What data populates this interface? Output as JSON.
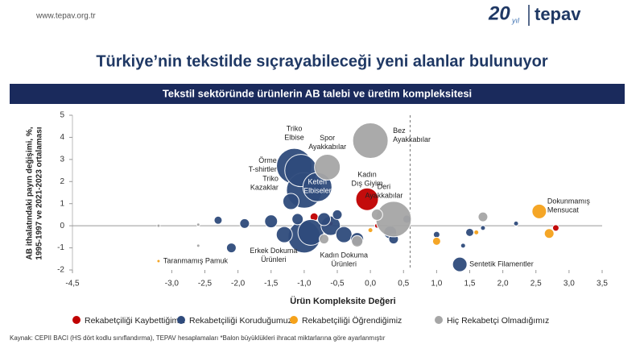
{
  "header": {
    "url": "www.tepav.org.tr",
    "logo_number": "20",
    "logo_suffix": "yıl",
    "logo_name": "tepav"
  },
  "title": "Türkiye’nin tekstilde sıçrayabileceği yeni alanlar bulunuyor",
  "footer": "Kaynak: CEPII BACI (HS dört kodlu sınıflandırma), TEPAV hesaplamaları *Balon büyüklükleri ihracat miktarlarına göre ayarlanmıştır",
  "chart_data": {
    "type": "bubble",
    "title": "Tekstil sektöründe ürünlerin AB talebi ve üretim kompleksitesi",
    "x_label": "Ürün Kompleksite Değeri",
    "y_label": [
      "AB ithalatındaki payın değişimi, %,",
      "1995-1997 ve 2021-2023 ortalaması"
    ],
    "xlim": [
      -4.5,
      3.5
    ],
    "ylim": [
      -2,
      5
    ],
    "xticks": [
      {
        "value": -4.5,
        "label": "-4,5"
      },
      {
        "value": -3.0,
        "label": "-3,0"
      },
      {
        "value": -2.5,
        "label": "-2,5"
      },
      {
        "value": -2.0,
        "label": "-2,0"
      },
      {
        "value": -1.5,
        "label": "-1,5"
      },
      {
        "value": -1.0,
        "label": "-1,0"
      },
      {
        "value": -0.5,
        "label": "-0,5"
      },
      {
        "value": 0,
        "label": "0,0"
      },
      {
        "value": 0.5,
        "label": "0,5"
      },
      {
        "value": 1.0,
        "label": "1,0"
      },
      {
        "value": 1.5,
        "label": "1,5"
      },
      {
        "value": 2.0,
        "label": "2,0"
      },
      {
        "value": 2.5,
        "label": "2,5"
      },
      {
        "value": 3.0,
        "label": "3,0"
      },
      {
        "value": 3.5,
        "label": "3,5"
      }
    ],
    "yticks": [
      -2,
      -1,
      0,
      1,
      2,
      3,
      4,
      5
    ],
    "reference_x": 0.6,
    "legend": "bottom",
    "series": [
      {
        "name": "Rekabetçiliği Kaybettiğimiz",
        "color": "#c00000",
        "x": [
          -0.05,
          -0.85,
          -0.6,
          2.8,
          0.1
        ],
        "values": [
          1.2,
          0.4,
          0.1,
          -0.1,
          0.0
        ],
        "sizes": [
          14,
          5,
          3,
          4,
          3
        ],
        "labels": [
          [
            "Kadın",
            "Dış Giyim"
          ],
          null,
          null,
          null,
          null
        ]
      },
      {
        "name": "Rekabetçiliği Koruduğumuz",
        "color": "#2f4b7c",
        "x": [
          -1.15,
          -1.05,
          -1.0,
          -0.8,
          -1.2,
          -1.5,
          -1.9,
          -2.1,
          -2.3,
          -1.0,
          -0.9,
          -0.6,
          -0.4,
          -1.3,
          -0.7,
          -0.2,
          -1.1,
          -0.5,
          0.3,
          0.55,
          0.35,
          1.35,
          1.0,
          1.5,
          1.7,
          2.2,
          1.4
        ],
        "values": [
          2.7,
          2.5,
          1.6,
          1.75,
          1.1,
          0.2,
          0.1,
          -1.0,
          0.25,
          -0.5,
          -0.3,
          0.0,
          -0.4,
          -0.4,
          0.3,
          -0.6,
          0.3,
          0.5,
          -0.3,
          0.3,
          -0.6,
          -1.75,
          -0.4,
          -0.3,
          -0.1,
          0.1,
          -0.9
        ],
        "sizes": [
          22,
          20,
          22,
          18,
          10,
          8,
          6,
          6,
          5,
          20,
          16,
          12,
          10,
          10,
          8,
          8,
          7,
          6,
          8,
          5,
          6,
          9,
          4,
          5,
          3,
          3,
          3
        ],
        "labels": [
          [
            "Triko",
            "Elbise"
          ],
          [
            "Örme",
            "T-shirtler"
          ],
          [
            "Triko",
            "Kazaklar"
          ],
          [
            "Keten",
            "Elbiseler"
          ],
          null,
          null,
          null,
          null,
          null,
          [
            "Erkek Dokuma",
            "Ürünleri"
          ],
          null,
          null,
          [
            "Kadın Dokuma",
            "Ürünleri"
          ],
          null,
          null,
          null,
          null,
          null,
          null,
          null,
          null,
          [
            "Sentetik Filamentler"
          ],
          null,
          null,
          null,
          null,
          null
        ]
      },
      {
        "name": "Rekabetçiliği Öğrendiğimiz",
        "color": "#f5a21b",
        "x": [
          2.55,
          2.7,
          1.0,
          -3.2,
          0.0,
          1.6
        ],
        "values": [
          0.65,
          -0.35,
          -0.7,
          -1.6,
          -0.2,
          -0.3
        ],
        "sizes": [
          9,
          6,
          5,
          2,
          3,
          3
        ],
        "labels": [
          [
            "Dokunmamış",
            "Mensucat"
          ],
          null,
          null,
          [
            "Taranmamış Pamuk"
          ],
          null,
          null
        ]
      },
      {
        "name": "Hiç Rekabetçi Olmadığımız",
        "color": "#a6a6a6",
        "x": [
          0.0,
          -0.65,
          0.35,
          1.7,
          -0.2,
          0.1,
          -2.6,
          -2.6,
          -0.7,
          -3.2
        ],
        "values": [
          3.85,
          2.65,
          0.3,
          0.4,
          -0.7,
          0.5,
          0.05,
          -0.9,
          -0.6,
          0.0
        ],
        "sizes": [
          22,
          16,
          22,
          6,
          7,
          7,
          2,
          2,
          6,
          2
        ],
        "labels": [
          [
            "Bez",
            "Ayakkabılar"
          ],
          [
            "Spor",
            "Ayakkabılar"
          ],
          [
            "Deri",
            "Ayakkabılar"
          ],
          null,
          null,
          null,
          null,
          null,
          null,
          null
        ]
      }
    ]
  }
}
